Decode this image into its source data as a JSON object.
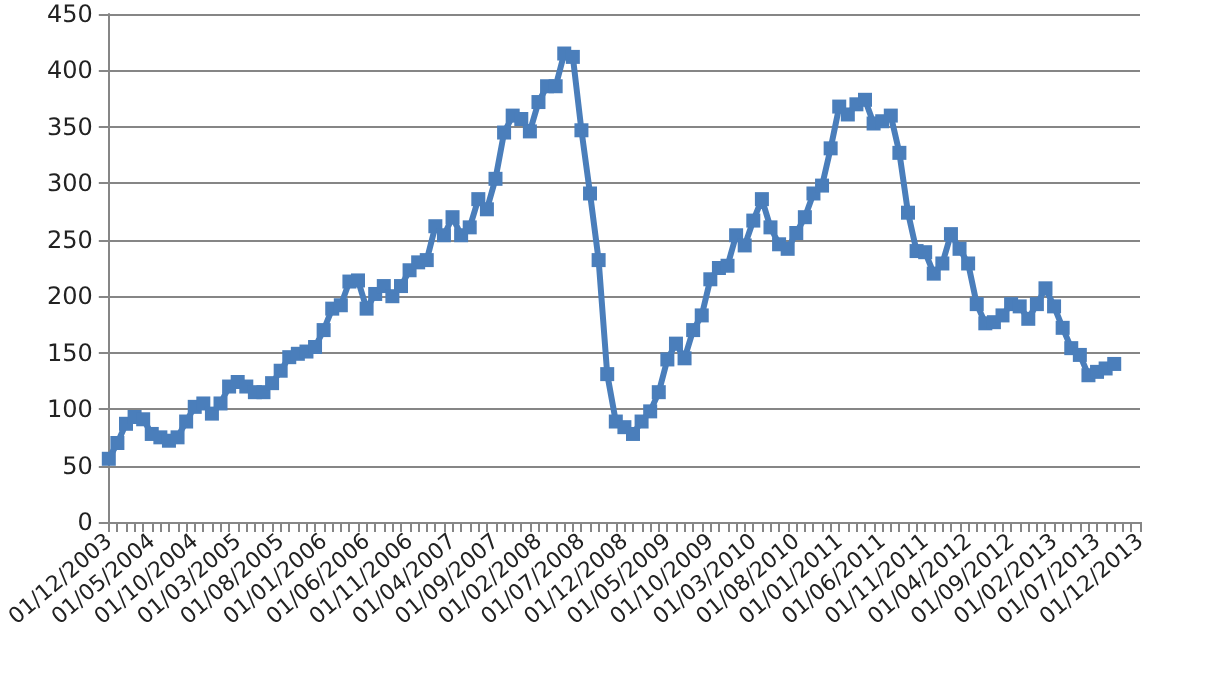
{
  "chart_data": {
    "type": "line",
    "marker": "square",
    "grid": "y",
    "categories": [
      "01/12/2003",
      null,
      null,
      null,
      null,
      "01/05/2004",
      null,
      null,
      null,
      null,
      "01/10/2004",
      null,
      null,
      null,
      null,
      "01/03/2005",
      null,
      null,
      null,
      null,
      "01/08/2005",
      null,
      null,
      null,
      null,
      "01/01/2006",
      null,
      null,
      null,
      null,
      "01/06/2006",
      null,
      null,
      null,
      null,
      "01/11/2006",
      null,
      null,
      null,
      null,
      "01/04/2007",
      null,
      null,
      null,
      null,
      "01/09/2007",
      null,
      null,
      null,
      null,
      "01/02/2008",
      null,
      null,
      null,
      null,
      "01/07/2008",
      null,
      null,
      null,
      null,
      "01/12/2008",
      null,
      null,
      null,
      null,
      "01/05/2009",
      null,
      null,
      null,
      null,
      "01/10/2009",
      null,
      null,
      null,
      null,
      "01/03/2010",
      null,
      null,
      null,
      null,
      "01/08/2010",
      null,
      null,
      null,
      null,
      "01/01/2011",
      null,
      null,
      null,
      null,
      "01/06/2011",
      null,
      null,
      null,
      null,
      "01/11/2011",
      null,
      null,
      null,
      null,
      "01/04/2012",
      null,
      null,
      null,
      null,
      "01/09/2012",
      null,
      null,
      null,
      null,
      "01/02/2013",
      null,
      null,
      null,
      null,
      "01/07/2013",
      null,
      null,
      null,
      null,
      "01/12/2013"
    ],
    "series": [
      {
        "color": "#4a7ebb",
        "values": [
          56,
          70,
          87,
          93,
          91,
          78,
          75,
          72,
          75,
          89,
          102,
          105,
          96,
          105,
          120,
          124,
          120,
          115,
          115,
          123,
          134,
          146,
          149,
          151,
          155,
          170,
          189,
          192,
          213,
          214,
          189,
          202,
          209,
          200,
          209,
          223,
          230,
          232,
          262,
          254,
          270,
          254,
          261,
          286,
          277,
          304,
          345,
          360,
          357,
          346,
          372,
          386,
          386,
          415,
          412,
          347,
          291,
          232,
          131,
          89,
          84,
          78,
          89,
          98,
          115,
          144,
          158,
          145,
          170,
          183,
          215,
          225,
          227,
          254,
          245,
          267,
          286,
          261,
          246,
          242,
          256,
          270,
          291,
          298,
          331,
          368,
          361,
          370,
          374,
          353,
          355,
          360,
          327,
          274,
          240,
          239,
          220,
          229,
          255,
          242,
          229,
          193,
          176,
          177,
          183,
          193,
          191,
          180,
          193,
          207,
          191,
          172,
          154,
          148,
          130,
          133,
          136,
          140,
          null,
          null,
          null
        ]
      }
    ],
    "ylim": [
      0,
      450
    ],
    "yticks": [
      0,
      50,
      100,
      150,
      200,
      250,
      300,
      350,
      400,
      450
    ]
  }
}
